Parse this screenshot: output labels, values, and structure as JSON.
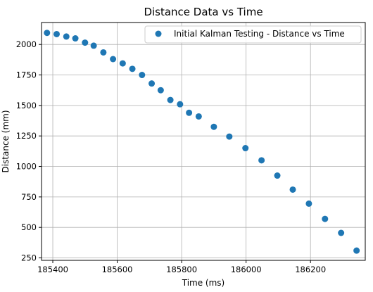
{
  "chart_data": {
    "type": "scatter",
    "title": "Distance Data vs Time",
    "xlabel": "Time (ms)",
    "ylabel": "Distance (mm)",
    "xlim": [
      185365,
      186370
    ],
    "ylim": [
      230,
      2180
    ],
    "xticks": [
      185400,
      185600,
      185800,
      186000,
      186200
    ],
    "yticks": [
      250,
      500,
      750,
      1000,
      1250,
      1500,
      1750,
      2000
    ],
    "grid": true,
    "legend_position": "top-right",
    "series": [
      {
        "name": "Initial Kalman Testing - Distance vs Time",
        "color": "#1f77b4",
        "x": [
          185382,
          185412,
          185442,
          185470,
          185500,
          185527,
          185557,
          185587,
          185617,
          185647,
          185677,
          185707,
          185735,
          185765,
          185795,
          185823,
          185853,
          185900,
          185948,
          185998,
          186048,
          186097,
          186145,
          186195,
          186245,
          186295,
          186343
        ],
        "y": [
          2095,
          2085,
          2065,
          2050,
          2015,
          1990,
          1935,
          1880,
          1845,
          1800,
          1750,
          1680,
          1625,
          1545,
          1510,
          1440,
          1410,
          1325,
          1245,
          1150,
          1050,
          925,
          810,
          695,
          570,
          455,
          310
        ]
      }
    ]
  }
}
